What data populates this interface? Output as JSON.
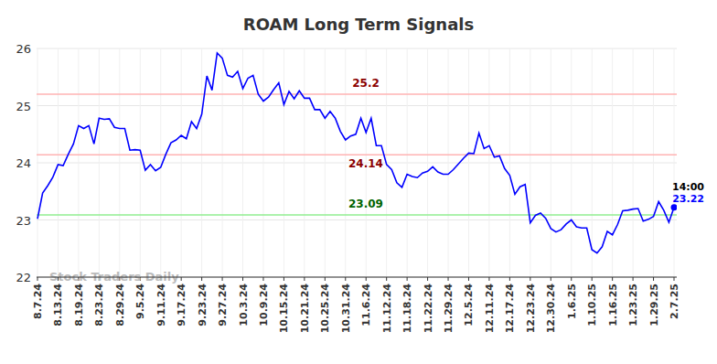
{
  "chart_data": {
    "type": "line",
    "title": "ROAM Long Term Signals",
    "categories": [
      "8.7.24",
      null,
      null,
      null,
      "8.13.24",
      null,
      null,
      null,
      "8.19.24",
      null,
      null,
      null,
      "8.23.24",
      null,
      null,
      null,
      "8.29.24",
      null,
      null,
      null,
      "9.5.24",
      null,
      null,
      null,
      "9.11.24",
      null,
      null,
      null,
      "9.17.24",
      null,
      null,
      null,
      "9.23.24",
      null,
      null,
      null,
      "9.27.24",
      null,
      null,
      null,
      "10.3.24",
      null,
      null,
      null,
      "10.9.24",
      null,
      null,
      null,
      "10.15.24",
      null,
      null,
      null,
      "10.21.24",
      null,
      null,
      null,
      "10.25.24",
      null,
      null,
      null,
      "10.31.24",
      null,
      null,
      null,
      "11.6.24",
      null,
      null,
      null,
      "11.12.24",
      null,
      null,
      null,
      "11.18.24",
      null,
      null,
      null,
      "11.22.24",
      null,
      null,
      null,
      "11.29.24",
      null,
      null,
      null,
      "12.5.24",
      null,
      null,
      null,
      "12.11.24",
      null,
      null,
      null,
      "12.17.24",
      null,
      null,
      null,
      "12.23.24",
      null,
      null,
      null,
      "12.30.24",
      null,
      null,
      null,
      "1.6.25",
      null,
      null,
      null,
      "1.10.25",
      null,
      null,
      null,
      "1.16.25",
      null,
      null,
      null,
      "1.23.25",
      null,
      null,
      null,
      "1.29.25",
      null,
      null,
      null,
      "2.7.25"
    ],
    "values": [
      23.02,
      23.47,
      23.6,
      23.75,
      23.97,
      23.95,
      24.15,
      24.33,
      24.65,
      24.6,
      24.65,
      24.33,
      24.78,
      24.76,
      24.77,
      24.62,
      24.6,
      24.6,
      24.22,
      24.23,
      24.22,
      23.87,
      23.97,
      23.86,
      23.92,
      24.15,
      24.35,
      24.4,
      24.48,
      24.42,
      24.72,
      24.6,
      24.85,
      25.52,
      25.27,
      25.92,
      25.83,
      25.53,
      25.5,
      25.6,
      25.3,
      25.48,
      25.53,
      25.2,
      25.08,
      25.15,
      25.28,
      25.4,
      25.02,
      25.25,
      25.12,
      25.26,
      25.13,
      25.13,
      24.93,
      24.93,
      24.78,
      24.9,
      24.78,
      24.55,
      24.4,
      24.47,
      24.5,
      24.78,
      24.53,
      24.78,
      24.3,
      24.3,
      23.97,
      23.88,
      23.65,
      23.57,
      23.8,
      23.76,
      23.74,
      23.82,
      23.85,
      23.93,
      23.84,
      23.8,
      23.8,
      23.88,
      23.98,
      24.08,
      24.17,
      24.16,
      24.52,
      24.25,
      24.3,
      24.1,
      24.12,
      23.9,
      23.78,
      23.45,
      23.58,
      23.62,
      22.95,
      23.08,
      23.12,
      23.03,
      22.85,
      22.79,
      22.83,
      22.93,
      23.0,
      22.88,
      22.86,
      22.86,
      22.48,
      22.42,
      22.53,
      22.8,
      22.74,
      22.92,
      23.16,
      23.17,
      23.19,
      23.2,
      22.98,
      23.01,
      23.06,
      23.32,
      23.17,
      22.96,
      23.22
    ],
    "color": "#0000ff",
    "ylim": [
      22,
      26
    ],
    "yticks": [
      22,
      23,
      24,
      25,
      26
    ],
    "grid": true,
    "reference_lines": [
      {
        "value": 25.2,
        "label": "25.2",
        "color": "#ffb3b3",
        "label_color": "#8b0000"
      },
      {
        "value": 24.14,
        "label": "24.14",
        "color": "#ffb3b3",
        "label_color": "#8b0000"
      },
      {
        "value": 23.09,
        "label": "23.09",
        "color": "#90ee90",
        "label_color": "#006400"
      }
    ],
    "annotations": [
      {
        "text": "14:00"
      },
      {
        "text": "23.22"
      },
      {
        "text": "Stock Traders Daily"
      }
    ]
  }
}
